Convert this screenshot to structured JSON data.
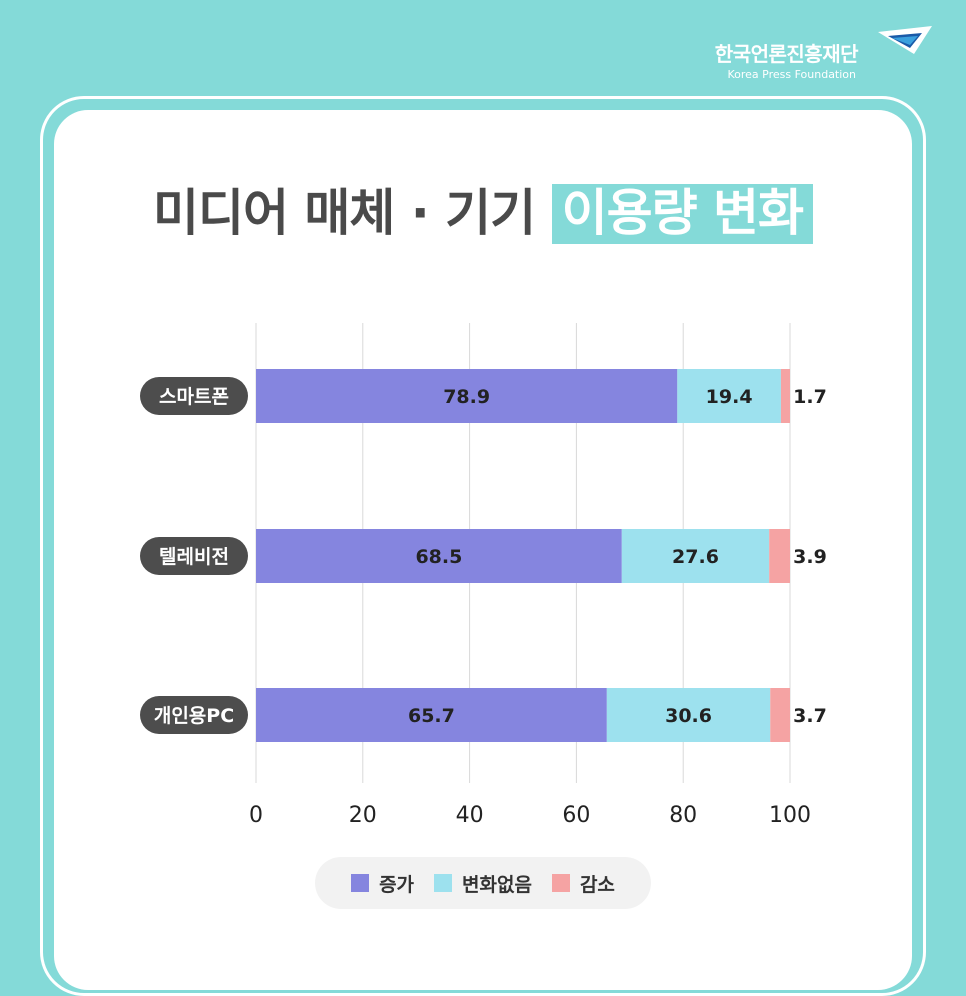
{
  "brand": {
    "name": "한국언론진흥재단",
    "name_en": "Korea Press Foundation"
  },
  "title": {
    "main": "미디어 매체 · 기기",
    "highlight": "이용량 변화"
  },
  "colors": {
    "background": "#84DAD8",
    "increase": "#8585DF",
    "no_change": "#9DE1EE",
    "decrease": "#F5A3A3",
    "category_badge": "#4d4d4d"
  },
  "legend": [
    {
      "label": "증가",
      "color": "#8585DF"
    },
    {
      "label": "변화없음",
      "color": "#9DE1EE"
    },
    {
      "label": "감소",
      "color": "#F5A3A3"
    }
  ],
  "chart_data": {
    "type": "bar",
    "orientation": "horizontal",
    "stacked": true,
    "categories": [
      "스마트폰",
      "텔레비전",
      "개인용PC"
    ],
    "series": [
      {
        "name": "증가",
        "values": [
          78.9,
          68.5,
          65.7
        ]
      },
      {
        "name": "변화없음",
        "values": [
          19.4,
          27.6,
          30.6
        ]
      },
      {
        "name": "감소",
        "values": [
          1.7,
          3.9,
          3.7
        ]
      }
    ],
    "xlim": [
      0,
      100
    ],
    "x_ticks": [
      "0",
      "20",
      "40",
      "60",
      "80",
      "100"
    ],
    "grid": true,
    "legend_position": "bottom"
  }
}
